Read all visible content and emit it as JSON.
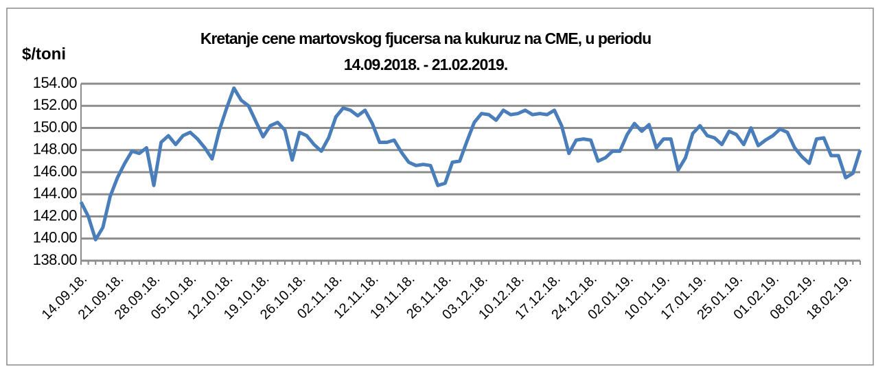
{
  "chart_data": {
    "type": "line",
    "title": [
      "Kretanje cene martovskog fjucersa na  kukuruz na CME, u periodu",
      "14.09.2018. - 21.02.2019."
    ],
    "y_label": "$/toni",
    "categories": [
      "14.09.18.",
      null,
      null,
      null,
      null,
      "21.09.18.",
      null,
      null,
      null,
      null,
      "28.09.18.",
      null,
      null,
      null,
      null,
      "05.10.18.",
      null,
      null,
      null,
      null,
      "12.10.18.",
      null,
      null,
      null,
      null,
      "19.10.18.",
      null,
      null,
      null,
      null,
      "26.10.18.",
      null,
      null,
      null,
      null,
      "02.11.18.",
      null,
      null,
      null,
      null,
      "12.11.18.",
      null,
      null,
      null,
      null,
      "19.11.18.",
      null,
      null,
      null,
      null,
      "26.11.18.",
      null,
      null,
      null,
      null,
      "03.12.18.",
      null,
      null,
      null,
      null,
      "10.12.18.",
      null,
      null,
      null,
      null,
      "17.12.18.",
      null,
      null,
      null,
      null,
      "24.12.18.",
      null,
      null,
      null,
      null,
      "02.01.19.",
      null,
      null,
      null,
      null,
      "10.01.19.",
      null,
      null,
      null,
      null,
      "17.01.19.",
      null,
      null,
      null,
      null,
      "25.01.19.",
      null,
      null,
      null,
      null,
      "01.02.19.",
      null,
      null,
      null,
      null,
      "08.02.19.",
      null,
      null,
      null,
      null,
      "18.02.19.",
      null,
      null
    ],
    "series": [
      {
        "color": "#4a7ebb",
        "values": [
          143.3,
          142.0,
          139.9,
          141.0,
          143.8,
          145.5,
          146.8,
          147.9,
          147.7,
          148.2,
          144.8,
          148.7,
          149.3,
          148.5,
          149.3,
          149.6,
          149.0,
          148.2,
          147.2,
          149.8,
          151.8,
          153.6,
          152.5,
          152.0,
          150.6,
          149.2,
          150.2,
          150.5,
          149.8,
          147.1,
          149.6,
          149.3,
          148.5,
          147.9,
          149.1,
          151.0,
          151.8,
          151.6,
          151.1,
          151.6,
          150.4,
          148.7,
          148.7,
          148.9,
          147.8,
          146.9,
          146.6,
          146.7,
          146.6,
          144.8,
          145.0,
          146.9,
          147.0,
          148.8,
          150.5,
          151.3,
          151.2,
          150.7,
          151.6,
          151.2,
          151.3,
          151.6,
          151.2,
          151.3,
          151.2,
          151.6,
          150.2,
          147.7,
          148.9,
          149.0,
          148.9,
          147.0,
          147.3,
          147.9,
          147.9,
          149.4,
          150.4,
          149.7,
          150.3,
          148.2,
          149.0,
          149.0,
          146.2,
          147.3,
          149.5,
          150.2,
          149.3,
          149.1,
          148.5,
          149.7,
          149.4,
          148.5,
          150.0,
          148.4,
          148.9,
          149.3,
          149.9,
          149.6,
          148.2,
          147.4,
          146.8,
          149.0,
          149.1,
          147.5,
          147.5,
          145.5,
          145.9,
          148.0
        ]
      }
    ],
    "ylim": [
      138,
      154
    ],
    "yticks": [
      {
        "value": 138,
        "label": "138.00"
      },
      {
        "value": 140,
        "label": "140.00"
      },
      {
        "value": 142,
        "label": "142.00"
      },
      {
        "value": 144,
        "label": "144.00"
      },
      {
        "value": 146,
        "label": "146.00"
      },
      {
        "value": 148,
        "label": "148.00"
      },
      {
        "value": 150,
        "label": "150.00"
      },
      {
        "value": 152,
        "label": "152.00"
      },
      {
        "value": 154,
        "label": "154.00"
      }
    ],
    "grid": true
  }
}
